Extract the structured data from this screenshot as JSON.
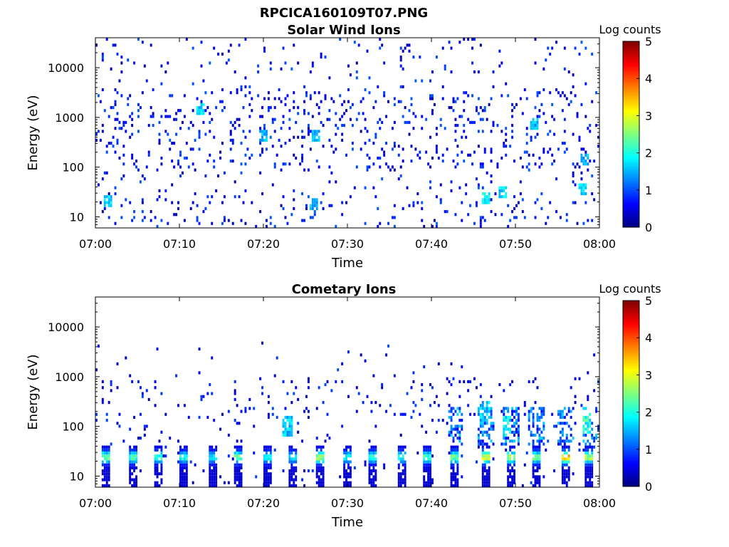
{
  "figure": {
    "title": "RPCICA160109T07.PNG"
  },
  "colormap": {
    "name": "jet",
    "stops": [
      "#00007f",
      "#0000ff",
      "#007fff",
      "#00ffff",
      "#7fff7f",
      "#ffff00",
      "#ff7f00",
      "#ff0000",
      "#7f0000"
    ]
  },
  "chart_data": [
    {
      "type": "heatmap",
      "title": "Solar Wind Ions",
      "xlabel": "Time",
      "ylabel": "Energy (eV)",
      "x_range": [
        "07:00",
        "08:00"
      ],
      "x_ticks": [
        "07:00",
        "07:10",
        "07:20",
        "07:30",
        "07:40",
        "07:50",
        "08:00"
      ],
      "y_scale": "log",
      "y_range": [
        6,
        40000
      ],
      "y_ticks": [
        10,
        100,
        1000,
        10000
      ],
      "y_tick_labels": [
        "10",
        "100",
        "1000",
        "10000"
      ],
      "colorbar": {
        "label": "Log counts",
        "range": [
          0,
          5
        ],
        "ticks": [
          "0",
          "1",
          "2",
          "3",
          "4",
          "5"
        ]
      },
      "hotspots": [
        {
          "t": 1.5,
          "e": 20,
          "v": 2.0
        },
        {
          "t": 12.5,
          "e": 1500,
          "v": 2.0
        },
        {
          "t": 20.0,
          "e": 400,
          "v": 1.8
        },
        {
          "t": 26.0,
          "e": 18,
          "v": 1.8
        },
        {
          "t": 26.3,
          "e": 400,
          "v": 1.8
        },
        {
          "t": 46.5,
          "e": 25,
          "v": 2.2
        },
        {
          "t": 48.5,
          "e": 30,
          "v": 2.0
        },
        {
          "t": 52.3,
          "e": 700,
          "v": 1.8
        },
        {
          "t": 58.0,
          "e": 35,
          "v": 2.0
        },
        {
          "t": 58.3,
          "e": 150,
          "v": 1.8
        }
      ]
    },
    {
      "type": "heatmap",
      "title": "Cometary Ions",
      "xlabel": "Time",
      "ylabel": "Energy (eV)",
      "x_range": [
        "07:00",
        "08:00"
      ],
      "x_ticks": [
        "07:00",
        "07:10",
        "07:20",
        "07:30",
        "07:40",
        "07:50",
        "08:00"
      ],
      "y_scale": "log",
      "y_range": [
        6,
        40000
      ],
      "y_ticks": [
        10,
        100,
        1000,
        10000
      ],
      "y_tick_labels": [
        "10",
        "100",
        "1000",
        "10000"
      ],
      "colorbar": {
        "label": "Log counts",
        "range": [
          0,
          5
        ],
        "ticks": [
          "0",
          "1",
          "2",
          "3",
          "4",
          "5"
        ]
      },
      "bands": [
        {
          "t": 1.3,
          "v": 2.8
        },
        {
          "t": 4.5,
          "v": 2.5
        },
        {
          "t": 7.5,
          "v": 2.5
        },
        {
          "t": 10.5,
          "v": 2.3
        },
        {
          "t": 14.0,
          "v": 2.0
        },
        {
          "t": 17.0,
          "v": 2.8
        },
        {
          "t": 20.5,
          "v": 2.2
        },
        {
          "t": 23.5,
          "v": 2.0
        },
        {
          "t": 26.8,
          "v": 3.0
        },
        {
          "t": 30.0,
          "v": 2.3
        },
        {
          "t": 33.0,
          "v": 2.5
        },
        {
          "t": 36.5,
          "v": 2.3
        },
        {
          "t": 39.5,
          "v": 2.5
        },
        {
          "t": 42.8,
          "v": 2.8
        },
        {
          "t": 46.5,
          "v": 3.3
        },
        {
          "t": 49.5,
          "v": 3.0
        },
        {
          "t": 52.5,
          "v": 2.8
        },
        {
          "t": 56.0,
          "v": 3.8
        },
        {
          "t": 58.8,
          "v": 3.2
        }
      ],
      "hotspots": [
        {
          "t": 46.3,
          "e": 200,
          "v": 2.0
        },
        {
          "t": 49.0,
          "e": 100,
          "v": 2.3
        },
        {
          "t": 58.5,
          "e": 120,
          "v": 2.6
        },
        {
          "t": 22.8,
          "e": 100,
          "v": 2.0
        }
      ]
    }
  ]
}
